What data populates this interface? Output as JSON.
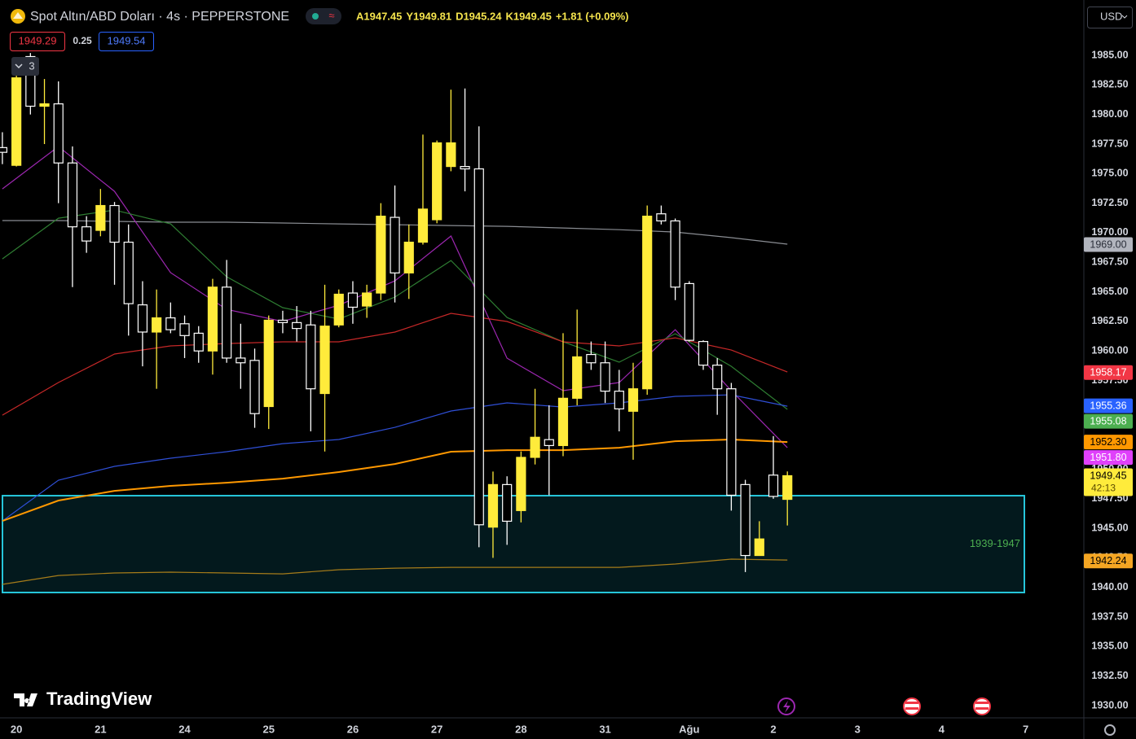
{
  "chart_data": {
    "type": "candlestick",
    "title": "Spot Altın/ABD Doları · 4s · PEPPERSTONE",
    "ohlc_text": [
      "A1947.45",
      "Y1949.81",
      "D1945.24",
      "K1949.45",
      "+1.81 (+0.09%)"
    ],
    "bid": "1949.29",
    "spread": "0.25",
    "ask": "1949.54",
    "indicator_count": "3",
    "currency": "USD",
    "brand": "TradingView",
    "up_color": "#ffeb3b",
    "down_color": "#ffffff",
    "open": [
      1977.2,
      1975.7,
      1984.9,
      1980.7,
      1980.9,
      1975.9,
      1970.5,
      1970.2,
      1972.3,
      1969.2,
      1963.9,
      1961.6,
      1962.8,
      1962.3,
      1961.5,
      1960.0,
      1965.4,
      1959.4,
      1959.2,
      1955.3,
      1962.6,
      1962.4,
      1962.2,
      1956.4,
      1962.2,
      1964.9,
      1963.8,
      1964.9,
      1971.3,
      1966.6,
      1969.2,
      1971.1,
      1975.6,
      1975.6,
      1975.4,
      1945.1,
      1948.7,
      1946.5,
      1951.0,
      1952.5,
      1952.0,
      1956.0,
      1959.7,
      1959.0,
      1956.6,
      1954.9,
      1956.8,
      1971.6,
      1971.0,
      1965.7,
      1960.8,
      1958.8,
      1956.8,
      1948.7,
      1942.7,
      1949.5,
      1947.45
    ],
    "high": [
      1978.5,
      1984.2,
      1985.2,
      1983.0,
      1982.8,
      1977.3,
      1971.4,
      1973.7,
      1972.6,
      1970.7,
      1965.9,
      1965.2,
      1964.1,
      1963.0,
      1962.1,
      1966.1,
      1967.7,
      1962.3,
      1960.2,
      1963.0,
      1963.4,
      1963.8,
      1963.4,
      1965.6,
      1965.2,
      1965.9,
      1965.6,
      1972.5,
      1974.0,
      1970.7,
      1978.3,
      1977.8,
      1982.1,
      1982.2,
      1979.0,
      1949.8,
      1949.4,
      1951.5,
      1956.8,
      1955.4,
      1961.5,
      1963.5,
      1960.8,
      1960.8,
      1958.4,
      1959.0,
      1972.3,
      1972.3,
      1971.2,
      1965.9,
      1960.9,
      1959.4,
      1957.3,
      1949.1,
      1945.6,
      1952.8,
      1949.81
    ],
    "low": [
      1975.8,
      1975.6,
      1980.0,
      1977.5,
      1972.5,
      1965.4,
      1968.3,
      1969.7,
      1965.6,
      1961.3,
      1958.7,
      1956.8,
      1961.5,
      1959.4,
      1959.0,
      1958.0,
      1959.0,
      1956.8,
      1953.5,
      1953.4,
      1961.5,
      1960.8,
      1953.2,
      1951.5,
      1962.0,
      1962.3,
      1962.8,
      1964.3,
      1964.1,
      1964.4,
      1969.0,
      1970.8,
      1975.2,
      1973.5,
      1943.4,
      1942.5,
      1943.6,
      1945.5,
      1950.4,
      1947.8,
      1951.1,
      1955.4,
      1958.4,
      1955.6,
      1953.2,
      1950.8,
      1956.3,
      1970.7,
      1964.3,
      1960.8,
      1958.4,
      1954.6,
      1946.5,
      1941.3,
      1942.7,
      1947.5,
      1945.24
    ],
    "close": [
      1976.8,
      1983.1,
      1980.7,
      1980.9,
      1975.9,
      1970.5,
      1969.3,
      1972.3,
      1969.2,
      1964.0,
      1961.6,
      1962.8,
      1961.8,
      1961.3,
      1960.0,
      1965.4,
      1959.4,
      1959.0,
      1954.7,
      1962.6,
      1962.4,
      1961.9,
      1956.8,
      1962.1,
      1964.8,
      1963.7,
      1964.9,
      1971.4,
      1966.6,
      1969.2,
      1972.0,
      1977.6,
      1977.6,
      1975.4,
      1945.3,
      1948.7,
      1945.6,
      1951.0,
      1952.7,
      1952.0,
      1956.0,
      1959.5,
      1959.0,
      1956.6,
      1955.1,
      1956.8,
      1971.4,
      1971.0,
      1965.4,
      1960.9,
      1958.8,
      1956.8,
      1947.8,
      1942.7,
      1944.1,
      1947.7,
      1949.45
    ],
    "ma_x": [
      0,
      4,
      8,
      12,
      16,
      20,
      24,
      28,
      32,
      36,
      40,
      44,
      48,
      52,
      56
    ],
    "moving_averages": [
      {
        "color": "#8a8d93",
        "values": [
          1971.03,
          1971.03,
          1970.96,
          1970.89,
          1970.89,
          1970.82,
          1970.75,
          1970.68,
          1970.61,
          1970.54,
          1970.4,
          1970.26,
          1970.06,
          1969.58,
          1969.03
        ]
      },
      {
        "color": "#9c27b0",
        "values": [
          1973.71,
          1977.29,
          1973.5,
          1966.62,
          1963.52,
          1962.49,
          1963.87,
          1965.93,
          1969.72,
          1959.39,
          1956.64,
          1957.33,
          1961.8,
          1956.64,
          1951.82
        ]
      },
      {
        "color": "#2e7d32",
        "values": [
          1967.79,
          1971.23,
          1971.92,
          1970.75,
          1966.28,
          1963.66,
          1962.7,
          1964.56,
          1967.65,
          1962.83,
          1960.77,
          1959.05,
          1961.46,
          1958.7,
          1955.06
        ]
      },
      {
        "color": "#c62828",
        "values": [
          1954.57,
          1957.33,
          1959.74,
          1960.43,
          1960.63,
          1960.77,
          1960.77,
          1961.6,
          1963.18,
          1962.49,
          1960.77,
          1960.43,
          1961.11,
          1960.08,
          1958.22
        ]
      },
      {
        "color": "#2f4fd6",
        "values": [
          1945.62,
          1949.07,
          1950.24,
          1950.93,
          1951.48,
          1952.16,
          1952.51,
          1953.54,
          1954.92,
          1955.61,
          1955.26,
          1955.61,
          1956.16,
          1956.29,
          1955.33
        ]
      },
      {
        "color": "#ff9800",
        "values": [
          1945.62,
          1947.35,
          1948.17,
          1948.59,
          1948.86,
          1949.2,
          1949.76,
          1950.44,
          1951.48,
          1951.61,
          1951.61,
          1951.82,
          1952.37,
          1952.51,
          1952.3
        ]
      },
      {
        "color": "#a67c1a",
        "values": [
          1940.26,
          1941.01,
          1941.22,
          1941.29,
          1941.22,
          1941.15,
          1941.5,
          1941.63,
          1941.7,
          1941.7,
          1941.7,
          1941.7,
          1941.98,
          1942.39,
          1942.32
        ]
      }
    ],
    "zone": {
      "label": "1939-1947",
      "top": 1947.76,
      "bottom": 1939.57,
      "color": "#26c6da"
    },
    "price_labels": [
      {
        "value": 1969.0,
        "label": "1969.00",
        "color": "#b2b5be",
        "text_color": "#2a2e39"
      },
      {
        "value": 1958.17,
        "label": "1958.17",
        "color": "#f23645",
        "text_color": "#ffffff"
      },
      {
        "value": 1955.36,
        "label": "1955.36",
        "color": "#2962ff",
        "text_color": "#ffffff"
      },
      {
        "value": 1955.08,
        "label": "1955.08",
        "color": "#4caf50",
        "text_color": "#ffffff"
      },
      {
        "value": 1952.3,
        "label": "1952.30",
        "color": "#ff9800",
        "text_color": "#000000"
      },
      {
        "value": 1951.8,
        "label": "1951.80",
        "color": "#e040fb",
        "text_color": "#ffffff"
      },
      {
        "value": 1949.45,
        "label": "1949.45",
        "sublabel": "42:13",
        "color": "#ffeb3b",
        "text_color": "#000000"
      },
      {
        "value": 1942.24,
        "label": "1942.24",
        "color": "#f5a623",
        "text_color": "#000000"
      }
    ],
    "xlim": [
      -0.17,
      77.15
    ],
    "xticks": [
      {
        "value": 1,
        "label": "20"
      },
      {
        "value": 7,
        "label": "21"
      },
      {
        "value": 13,
        "label": "24"
      },
      {
        "value": 19,
        "label": "25"
      },
      {
        "value": 25,
        "label": "26"
      },
      {
        "value": 31,
        "label": "27"
      },
      {
        "value": 37,
        "label": "28"
      },
      {
        "value": 43,
        "label": "31"
      },
      {
        "value": 49,
        "label": "Ağu"
      },
      {
        "value": 55,
        "label": "2"
      },
      {
        "value": 61,
        "label": "3"
      },
      {
        "value": 67,
        "label": "4"
      },
      {
        "value": 73,
        "label": "7"
      }
    ],
    "ylim": [
      1928.97,
      1986.93
    ],
    "yticks": [
      {
        "value": 1930,
        "label": "1930.00"
      },
      {
        "value": 1932.5,
        "label": "1932.50"
      },
      {
        "value": 1935,
        "label": "1935.00"
      },
      {
        "value": 1937.5,
        "label": "1937.50"
      },
      {
        "value": 1940,
        "label": "1940.00"
      },
      {
        "value": 1942.5,
        "label": "1942.50"
      },
      {
        "value": 1945,
        "label": "1945.00"
      },
      {
        "value": 1947.5,
        "label": "1947.50"
      },
      {
        "value": 1950,
        "label": "1950.00"
      },
      {
        "value": 1952.5,
        "label": "1952.50"
      },
      {
        "value": 1955,
        "label": "1955.00"
      },
      {
        "value": 1957.5,
        "label": "1957.50"
      },
      {
        "value": 1960,
        "label": "1960.00"
      },
      {
        "value": 1962.5,
        "label": "1962.50"
      },
      {
        "value": 1965,
        "label": "1965.00"
      },
      {
        "value": 1967.5,
        "label": "1967.50"
      },
      {
        "value": 1970,
        "label": "1970.00"
      },
      {
        "value": 1972.5,
        "label": "1972.50"
      },
      {
        "value": 1975,
        "label": "1975.00"
      },
      {
        "value": 1977.5,
        "label": "1977.50"
      },
      {
        "value": 1980,
        "label": "1980.00"
      },
      {
        "value": 1982.5,
        "label": "1982.50"
      },
      {
        "value": 1985,
        "label": "1985.00"
      }
    ],
    "grid": false
  }
}
